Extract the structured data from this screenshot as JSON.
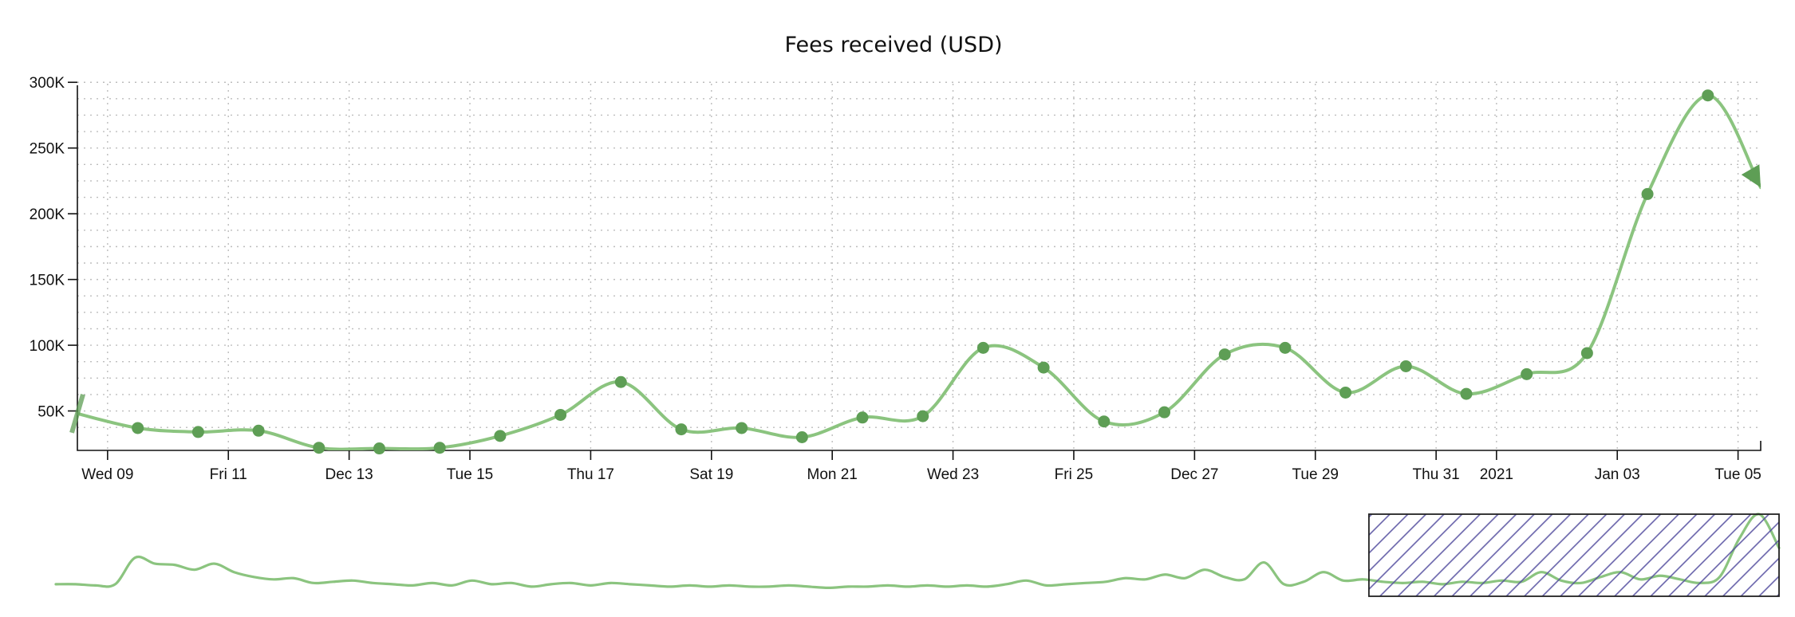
{
  "chart_data": {
    "type": "line",
    "title": "Fees received (USD)",
    "xlabel": "",
    "ylabel": "",
    "grid": true,
    "line_color": "#8bc47f",
    "marker_color": "#5e9e55",
    "brush_color": "#534d9e",
    "xlim": [
      "2020-12-08T12:00",
      "2021-01-05T09:00"
    ],
    "ylim": [
      20000,
      305000
    ],
    "yticks": [
      {
        "value": 50000,
        "label": "50K"
      },
      {
        "value": 100000,
        "label": "100K"
      },
      {
        "value": 150000,
        "label": "150K"
      },
      {
        "value": 200000,
        "label": "200K"
      },
      {
        "value": 250000,
        "label": "250K"
      },
      {
        "value": 300000,
        "label": "300K"
      }
    ],
    "xticks": [
      {
        "value": "2020-12-09",
        "label": "Wed 09"
      },
      {
        "value": "2020-12-11",
        "label": "Fri 11"
      },
      {
        "value": "2020-12-13",
        "label": "Dec 13"
      },
      {
        "value": "2020-12-15",
        "label": "Tue 15"
      },
      {
        "value": "2020-12-17",
        "label": "Thu 17"
      },
      {
        "value": "2020-12-19",
        "label": "Sat 19"
      },
      {
        "value": "2020-12-21",
        "label": "Mon 21"
      },
      {
        "value": "2020-12-23",
        "label": "Wed 23"
      },
      {
        "value": "2020-12-25",
        "label": "Fri 25"
      },
      {
        "value": "2020-12-27",
        "label": "Dec 27"
      },
      {
        "value": "2020-12-29",
        "label": "Tue 29"
      },
      {
        "value": "2020-12-31",
        "label": "Thu 31"
      },
      {
        "value": "2021-01-01",
        "label": "2021"
      },
      {
        "value": "2021-01-03",
        "label": "Jan 03"
      },
      {
        "value": "2021-01-05",
        "label": "Tue 05"
      }
    ],
    "series": [
      {
        "x": [
          "2020-12-08T12:00",
          "2020-12-09T12:00",
          "2020-12-10T12:00",
          "2020-12-11T12:00",
          "2020-12-12T12:00",
          "2020-12-13T12:00",
          "2020-12-14T12:00",
          "2020-12-15T12:00",
          "2020-12-16T12:00",
          "2020-12-17T12:00",
          "2020-12-18T12:00",
          "2020-12-19T12:00",
          "2020-12-20T12:00",
          "2020-12-21T12:00",
          "2020-12-22T12:00",
          "2020-12-23T12:00",
          "2020-12-24T12:00",
          "2020-12-25T12:00",
          "2020-12-26T12:00",
          "2020-12-27T12:00",
          "2020-12-28T12:00",
          "2020-12-29T12:00",
          "2020-12-30T12:00",
          "2020-12-31T12:00",
          "2021-01-01T12:00",
          "2021-01-02T12:00",
          "2021-01-03T12:00",
          "2021-01-04T12:00",
          "2021-01-05T09:00"
        ],
        "values": [
          48000,
          37000,
          34000,
          35000,
          22000,
          21500,
          22000,
          31000,
          47000,
          72000,
          36000,
          37000,
          30000,
          45000,
          46000,
          98000,
          83000,
          42000,
          49000,
          93000,
          98000,
          64000,
          84000,
          63000,
          78000,
          94000,
          215000,
          290000,
          220000
        ],
        "markers": [
          false,
          true,
          true,
          true,
          true,
          true,
          true,
          true,
          true,
          true,
          true,
          true,
          true,
          true,
          true,
          true,
          true,
          true,
          true,
          true,
          true,
          true,
          true,
          true,
          true,
          true,
          true,
          true,
          false
        ]
      }
    ],
    "overview": {
      "values": [
        10,
        10,
        9,
        10,
        32,
        27,
        26,
        22,
        27,
        20,
        16,
        14,
        15,
        11,
        12,
        13,
        11,
        10,
        9,
        11,
        9,
        13,
        10,
        11,
        8,
        10,
        11,
        9,
        11,
        10,
        9,
        8,
        9,
        8,
        9,
        8,
        8,
        9,
        8,
        7,
        8,
        8,
        9,
        8,
        9,
        8,
        9,
        8,
        10,
        13,
        9,
        10,
        11,
        12,
        15,
        14,
        18,
        15,
        22,
        16,
        14,
        28,
        10,
        12,
        20,
        13,
        14,
        12,
        11,
        12,
        10,
        12,
        11,
        13,
        12,
        20,
        13,
        11,
        16,
        20,
        14,
        17,
        14,
        11,
        16,
        48,
        68,
        40
      ],
      "brush_start": 0.762,
      "brush_end": 1.0
    }
  }
}
